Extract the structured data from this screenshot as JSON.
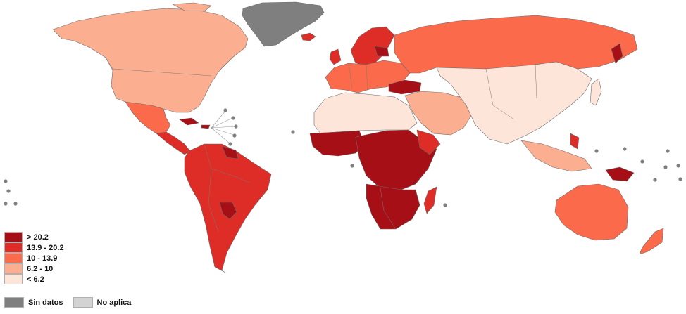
{
  "legend": {
    "classes": [
      {
        "label": "> 20.2",
        "color": "#a50f15"
      },
      {
        "label": "13.9 - 20.2",
        "color": "#de2d26"
      },
      {
        "label": "10 - 13.9",
        "color": "#fb6a4a"
      },
      {
        "label": "6.2 - 10",
        "color": "#fcae91"
      },
      {
        "label": "< 6.2",
        "color": "#fee5d9"
      }
    ],
    "no_data": {
      "label": "Sin datos",
      "color": "#7f7f7f"
    },
    "not_applicable": {
      "label": "No aplica",
      "color": "#d3d3d3"
    }
  },
  "regions": {
    "north_america": "6.2 - 10",
    "mexico": "10 - 13.9",
    "central_america": "13.9 - 20.2",
    "south_america": "13.9 - 20.2",
    "paraguay": "> 20.2",
    "greenland": "Sin datos",
    "scandinavia_baltics": "13.9 - 20.2",
    "europe_west": "10 - 13.9",
    "russia": "10 - 13.9",
    "turkey": "> 20.2",
    "north_africa": "< 6.2",
    "central_africa": "> 20.2",
    "southern_africa": "> 20.2",
    "madagascar": "13.9 - 20.2",
    "middle_east": "6.2 - 10",
    "asia": "< 6.2",
    "southeast_asia": "6.2 - 10",
    "papua_new_guinea": "> 20.2",
    "australia": "10 - 13.9",
    "new_zealand": "10 - 13.9"
  }
}
